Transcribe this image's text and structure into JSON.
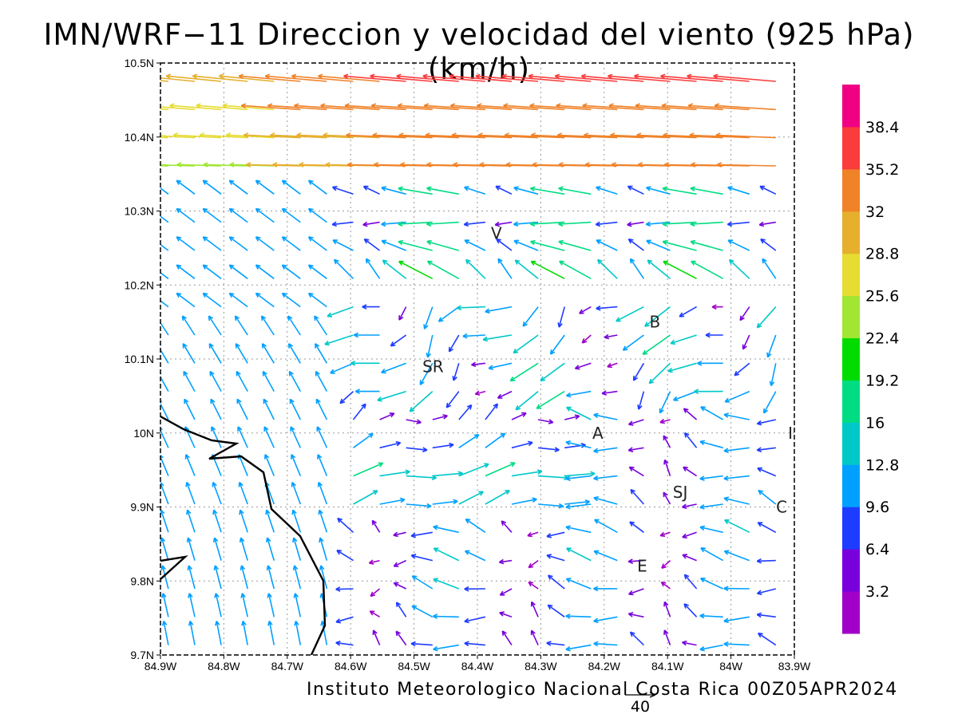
{
  "title": "IMN/WRF−11 Direccion y velocidad del viento (925 hPa)(km/h)",
  "footer": "Instituto Meteorologico Nacional Costa Rica 00Z05APR2024",
  "reference_vector_label": "40",
  "chart_data": {
    "type": "vector-field",
    "xlabel": "",
    "ylabel": "",
    "xlim": [
      -84.9,
      -83.9
    ],
    "ylim": [
      9.7,
      10.5
    ],
    "x_tick_labels": [
      "84.9W",
      "84.8W",
      "84.7W",
      "84.6W",
      "84.5W",
      "84.4W",
      "84.3W",
      "84.2W",
      "84.1W",
      "84W",
      "83.9W"
    ],
    "y_tick_labels": [
      "9.7N",
      "9.8N",
      "9.9N",
      "10N",
      "10.1N",
      "10.2N",
      "10.3N",
      "10.4N",
      "10.5N"
    ],
    "grid": "dotted",
    "colorbar": {
      "placement": "right",
      "levels": [
        3.2,
        6.4,
        9.6,
        12.8,
        16,
        19.2,
        22.4,
        25.6,
        28.8,
        32,
        35.2,
        38.4
      ],
      "labels": [
        "38.4",
        "35.2",
        "32",
        "28.8",
        "25.6",
        "22.4",
        "19.2",
        "16",
        "12.8",
        "9.6",
        "6.4",
        "3.2"
      ],
      "colors": [
        "#a000c8",
        "#7800dc",
        "#1e3cff",
        "#00a0ff",
        "#00c8c8",
        "#00dc82",
        "#00dc00",
        "#a0e632",
        "#e6dc32",
        "#e6af2d",
        "#f08228",
        "#fa3c3c",
        "#f00082"
      ]
    },
    "places": [
      {
        "label": "V",
        "lon": -84.37,
        "lat": 10.27
      },
      {
        "label": "B",
        "lon": -84.12,
        "lat": 10.15
      },
      {
        "label": "SR",
        "lon": -84.47,
        "lat": 10.09
      },
      {
        "label": "A",
        "lon": -84.21,
        "lat": 10.0
      },
      {
        "label": "SJ",
        "lon": -84.08,
        "lat": 9.92
      },
      {
        "label": "C",
        "lon": -83.92,
        "lat": 9.9
      },
      {
        "label": "E",
        "lon": -84.14,
        "lat": 9.82
      },
      {
        "label": "I",
        "lon": -83.9,
        "lat": 10.0
      }
    ]
  }
}
